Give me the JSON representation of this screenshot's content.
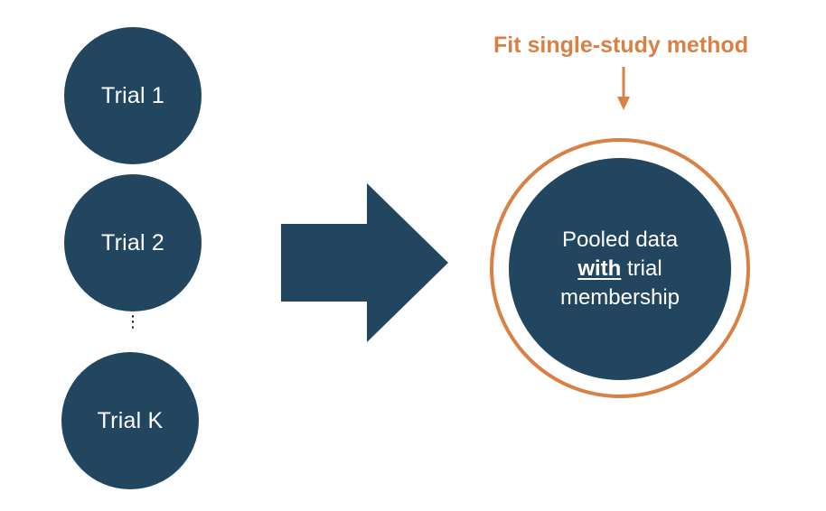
{
  "trials": [
    {
      "label": "Trial 1"
    },
    {
      "label": "Trial 2"
    },
    {
      "label": "Trial K"
    }
  ],
  "ellipsis": "⋮",
  "pooled": {
    "line1": "Pooled data",
    "line2_emphasis": "with",
    "line2_rest": " trial",
    "line3": "membership"
  },
  "fit_label": "Fit single-study method",
  "colors": {
    "node_fill": "#22465f",
    "accent": "#d98045",
    "text_on_node": "#ffffff"
  },
  "icons": {
    "big_arrow": "right-arrow-icon",
    "small_arrow": "down-arrow-icon"
  }
}
